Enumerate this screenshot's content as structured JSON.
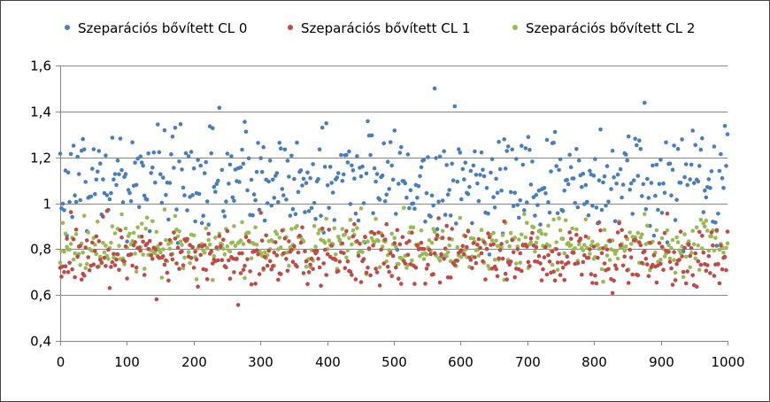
{
  "chart_data": {
    "type": "scatter",
    "title": "",
    "xlabel": "",
    "ylabel": "",
    "xlim": [
      0,
      1000
    ],
    "ylim": [
      0.4,
      1.6
    ],
    "x_ticks": [
      0,
      100,
      200,
      300,
      400,
      500,
      600,
      700,
      800,
      900,
      1000
    ],
    "x_tick_labels": [
      "0",
      "100",
      "200",
      "300",
      "400",
      "500",
      "600",
      "700",
      "800",
      "900",
      "1000"
    ],
    "y_ticks": [
      0.4,
      0.6,
      0.8,
      1.0,
      1.2,
      1.4,
      1.6
    ],
    "y_tick_labels": [
      "0,4",
      "0,6",
      "0,8",
      "1",
      "1,2",
      "1,4",
      "1,6"
    ],
    "grid": "horizontal",
    "legend_position": "top",
    "points_per_series": 500,
    "series": [
      {
        "name": "Szeparációs bővített CL 0",
        "color": "#4a7ebb",
        "center": 1.1,
        "spread": 0.125,
        "min": 0.63,
        "max": 1.5
      },
      {
        "name": "Szeparációs bővített CL 1",
        "color": "#be4b48",
        "center": 0.77,
        "spread": 0.065,
        "min": 0.55,
        "max": 0.98
      },
      {
        "name": "Szeparációs bővített CL 2",
        "color": "#98b954",
        "center": 0.82,
        "spread": 0.06,
        "min": 0.6,
        "max": 0.98
      }
    ]
  }
}
